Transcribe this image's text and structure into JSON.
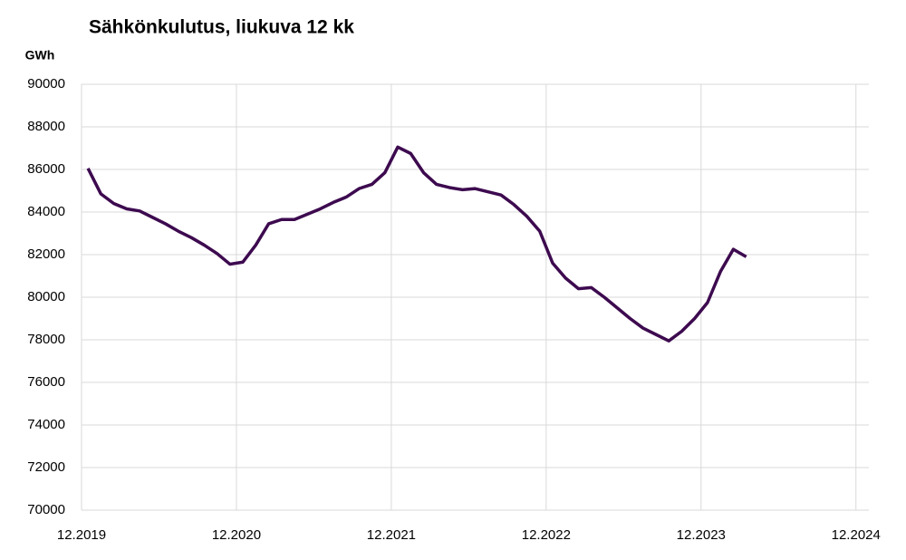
{
  "chart_data": {
    "type": "line",
    "title": "Sähkönkulutus, liukuva 12 kk",
    "y_label": "GWh",
    "x": [
      0.5,
      1.5,
      2.5,
      3.5,
      4.5,
      5.5,
      6.5,
      7.5,
      8.5,
      9.5,
      10.5,
      11.5,
      12.5,
      13.5,
      14.5,
      15.5,
      16.5,
      17.5,
      18.5,
      19.5,
      20.5,
      21.5,
      22.5,
      23.5,
      24.5,
      25.5,
      26.5,
      27.5,
      28.5,
      29.5,
      30.5,
      31.5,
      32.5,
      33.5,
      34.5,
      35.5,
      36.5,
      37.5,
      38.5,
      39.5,
      40.5,
      41.5,
      42.5,
      43.5,
      44.5,
      45.5,
      46.5,
      47.5,
      48.5,
      49.5,
      50.5,
      51.5
    ],
    "series": [
      {
        "color": "#3d0a4f",
        "values": [
          86050,
          84850,
          84400,
          84150,
          84050,
          83750,
          83450,
          83100,
          82800,
          82450,
          82050,
          81550,
          81650,
          82450,
          83450,
          83650,
          83650,
          83900,
          84150,
          84450,
          84700,
          85100,
          85300,
          85850,
          87050,
          86750,
          85850,
          85300,
          85150,
          85050,
          85100,
          84950,
          84800,
          84350,
          83800,
          83100,
          81600,
          80900,
          80400,
          80450,
          80000,
          79500,
          79000,
          78550,
          78250,
          77950,
          78400,
          79000,
          79750,
          81200,
          82250,
          81900
        ]
      }
    ],
    "xlim": [
      0,
      61
    ],
    "xticks": [
      {
        "value": 0,
        "label": "12.2019"
      },
      {
        "value": 12,
        "label": "12.2020"
      },
      {
        "value": 24,
        "label": "12.2021"
      },
      {
        "value": 36,
        "label": "12.2022"
      },
      {
        "value": 48,
        "label": "12.2023"
      },
      {
        "value": 60,
        "label": "12.2024"
      }
    ],
    "ylim": [
      70000,
      90000
    ],
    "yticks": [
      70000,
      72000,
      74000,
      76000,
      78000,
      80000,
      82000,
      84000,
      86000,
      88000,
      90000
    ],
    "grid": true
  }
}
